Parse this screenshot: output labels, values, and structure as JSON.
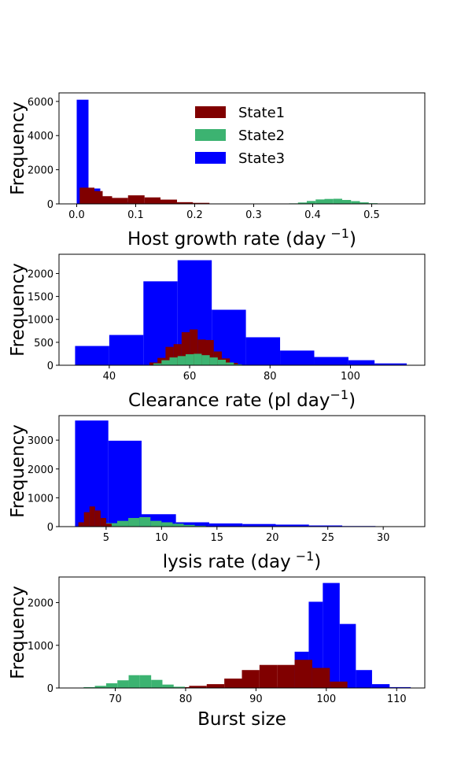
{
  "colors": {
    "State1": "#800000",
    "State2": "#3cb371",
    "State3": "#0000ff"
  },
  "chart_data": [
    {
      "type": "bar",
      "xlabel": "Host growth rate (day",
      "xlabel_sup": "−1",
      "xlabel_suffix": ")",
      "ylabel": "Frequency",
      "xlim": [
        -0.03,
        0.59
      ],
      "ylim": [
        0,
        6500
      ],
      "xticks": [
        0.0,
        0.1,
        0.2,
        0.3,
        0.4,
        0.5
      ],
      "xtick_labels": [
        "0.0",
        "0.1",
        "0.2",
        "0.3",
        "0.4",
        "0.5"
      ],
      "yticks": [
        0,
        2000,
        4000,
        6000
      ],
      "ytick_labels": [
        "0",
        "2000",
        "4000",
        "6000"
      ],
      "legend": {
        "placement": "top-center",
        "entries": [
          "State1",
          "State2",
          "State3"
        ]
      },
      "series": [
        {
          "name": "State3",
          "bins": [
            [
              0.0,
              0.02,
              6100
            ],
            [
              0.02,
              0.04,
              900
            ],
            [
              0.04,
              0.06,
              300
            ],
            [
              0.06,
              0.08,
              200
            ],
            [
              0.08,
              0.1,
              110
            ],
            [
              0.1,
              0.12,
              60
            ],
            [
              0.12,
              0.14,
              35
            ],
            [
              0.14,
              0.16,
              20
            ],
            [
              0.16,
              0.18,
              10
            ]
          ]
        },
        {
          "name": "State1",
          "bins": [
            [
              0.005,
              0.03,
              950
            ],
            [
              0.03,
              0.044,
              750
            ],
            [
              0.044,
              0.06,
              450
            ],
            [
              0.06,
              0.087,
              350
            ],
            [
              0.087,
              0.115,
              500
            ],
            [
              0.115,
              0.142,
              380
            ],
            [
              0.142,
              0.17,
              250
            ],
            [
              0.17,
              0.197,
              100
            ],
            [
              0.197,
              0.225,
              60
            ]
          ]
        },
        {
          "name": "State2",
          "bins": [
            [
              0.36,
              0.375,
              30
            ],
            [
              0.375,
              0.39,
              80
            ],
            [
              0.39,
              0.405,
              170
            ],
            [
              0.405,
              0.42,
              260
            ],
            [
              0.42,
              0.435,
              290
            ],
            [
              0.435,
              0.45,
              300
            ],
            [
              0.45,
              0.465,
              230
            ],
            [
              0.465,
              0.48,
              160
            ],
            [
              0.48,
              0.495,
              90
            ],
            [
              0.495,
              0.51,
              40
            ],
            [
              0.51,
              0.525,
              15
            ]
          ]
        }
      ]
    },
    {
      "type": "bar",
      "xlabel": "Clearance rate (pl day",
      "xlabel_sup": "−1",
      "xlabel_suffix": ")",
      "ylabel": "Frequency",
      "xlim": [
        27.5,
        118.5
      ],
      "ylim": [
        0,
        2420
      ],
      "xticks": [
        40,
        60,
        80,
        100
      ],
      "xtick_labels": [
        "40",
        "60",
        "80",
        "100"
      ],
      "yticks": [
        0,
        500,
        1000,
        1500,
        2000
      ],
      "ytick_labels": [
        "0",
        "500",
        "1000",
        "1500",
        "2000"
      ],
      "series": [
        {
          "name": "State3",
          "bins": [
            [
              31.5,
              40,
              420
            ],
            [
              40,
              48.5,
              660
            ],
            [
              48.5,
              57,
              1830
            ],
            [
              57,
              65.5,
              2290
            ],
            [
              65.5,
              74,
              1210
            ],
            [
              74,
              82.5,
              610
            ],
            [
              82.5,
              91,
              320
            ],
            [
              91,
              99.5,
              180
            ],
            [
              99.5,
              106,
              110
            ],
            [
              106,
              114,
              40
            ]
          ]
        },
        {
          "name": "State1",
          "bins": [
            [
              50,
              52,
              60
            ],
            [
              52,
              54,
              160
            ],
            [
              54,
              56,
              400
            ],
            [
              56,
              58,
              460
            ],
            [
              58,
              60,
              720
            ],
            [
              60,
              62,
              780
            ],
            [
              62,
              64,
              560
            ],
            [
              64,
              66,
              550
            ],
            [
              66,
              68,
              300
            ],
            [
              68,
              70,
              150
            ],
            [
              70,
              72,
              50
            ]
          ]
        },
        {
          "name": "State2",
          "bins": [
            [
              51,
              53,
              40
            ],
            [
              53,
              55,
              110
            ],
            [
              55,
              57,
              170
            ],
            [
              57,
              59,
              200
            ],
            [
              59,
              61,
              240
            ],
            [
              61,
              63,
              250
            ],
            [
              63,
              65,
              220
            ],
            [
              65,
              67,
              170
            ],
            [
              67,
              69,
              120
            ],
            [
              69,
              71,
              60
            ],
            [
              71,
              73,
              20
            ]
          ]
        }
      ]
    },
    {
      "type": "bar",
      "xlabel": "lysis rate (day",
      "xlabel_sup": "−1",
      "xlabel_suffix": ")",
      "ylabel": "Frequency",
      "xlim": [
        0.75,
        33.75
      ],
      "ylim": [
        0,
        3850
      ],
      "xticks": [
        5,
        10,
        15,
        20,
        25,
        30
      ],
      "xtick_labels": [
        "5",
        "10",
        "15",
        "20",
        "25",
        "30"
      ],
      "yticks": [
        0,
        1000,
        2000,
        3000
      ],
      "ytick_labels": [
        "0",
        "1000",
        "2000",
        "3000"
      ],
      "series": [
        {
          "name": "State3",
          "bins": [
            [
              2.2,
              5.2,
              3680
            ],
            [
              5.2,
              8.2,
              2980
            ],
            [
              8.2,
              11.3,
              430
            ],
            [
              11.3,
              14.3,
              150
            ],
            [
              14.3,
              17.3,
              110
            ],
            [
              17.3,
              20.3,
              90
            ],
            [
              20.3,
              23.3,
              70
            ],
            [
              23.3,
              26.3,
              40
            ],
            [
              26.3,
              29.3,
              20
            ],
            [
              29.3,
              32.3,
              10
            ]
          ]
        },
        {
          "name": "State2",
          "bins": [
            [
              4.0,
              5.0,
              40
            ],
            [
              5.0,
              6.0,
              120
            ],
            [
              6.0,
              7.0,
              200
            ],
            [
              7.0,
              8.0,
              300
            ],
            [
              8.0,
              9.0,
              330
            ],
            [
              9.0,
              10.0,
              200
            ],
            [
              10.0,
              11.0,
              150
            ],
            [
              11.0,
              12.0,
              100
            ],
            [
              12.0,
              13.0,
              60
            ],
            [
              13.0,
              14.0,
              30
            ]
          ]
        },
        {
          "name": "State1",
          "bins": [
            [
              2.5,
              3.0,
              150
            ],
            [
              3.0,
              3.5,
              500
            ],
            [
              3.5,
              4.0,
              700
            ],
            [
              4.0,
              4.5,
              560
            ],
            [
              4.5,
              5.0,
              300
            ],
            [
              5.0,
              5.5,
              100
            ]
          ]
        }
      ]
    },
    {
      "type": "bar",
      "xlabel": "Burst size",
      "xlabel_sup": "",
      "xlabel_suffix": "",
      "ylabel": "Frequency",
      "xlim": [
        62,
        114
      ],
      "ylim": [
        0,
        2600
      ],
      "xticks": [
        70,
        80,
        90,
        100,
        110
      ],
      "xtick_labels": [
        "70",
        "80",
        "90",
        "100",
        "110"
      ],
      "yticks": [
        0,
        1000,
        2000
      ],
      "ytick_labels": [
        "0",
        "1000",
        "2000"
      ],
      "series": [
        {
          "name": "State3",
          "bins": [
            [
              93,
              95.5,
              40
            ],
            [
              95.5,
              97.5,
              850
            ],
            [
              97.5,
              99.5,
              2020
            ],
            [
              99.5,
              101.9,
              2460
            ],
            [
              101.9,
              104.2,
              1500
            ],
            [
              104.2,
              106.5,
              420
            ],
            [
              106.5,
              109,
              90
            ],
            [
              109,
              112,
              20
            ]
          ]
        },
        {
          "name": "State1",
          "bins": [
            [
              78,
              80.5,
              20
            ],
            [
              80.5,
              83,
              50
            ],
            [
              83,
              85.5,
              90
            ],
            [
              85.5,
              88,
              220
            ],
            [
              88,
              90.5,
              420
            ],
            [
              90.5,
              93,
              540
            ],
            [
              93,
              95.5,
              540
            ],
            [
              95.5,
              98,
              660
            ],
            [
              98,
              100.5,
              470
            ],
            [
              100.5,
              103,
              150
            ]
          ]
        },
        {
          "name": "State2",
          "bins": [
            [
              65.5,
              67.1,
              20
            ],
            [
              67.1,
              68.7,
              50
            ],
            [
              68.7,
              70.3,
              110
            ],
            [
              70.3,
              71.9,
              180
            ],
            [
              71.9,
              73.5,
              300
            ],
            [
              73.5,
              75.1,
              300
            ],
            [
              75.1,
              76.7,
              190
            ],
            [
              76.7,
              78.3,
              80
            ],
            [
              78.3,
              79.9,
              30
            ]
          ]
        }
      ]
    }
  ]
}
